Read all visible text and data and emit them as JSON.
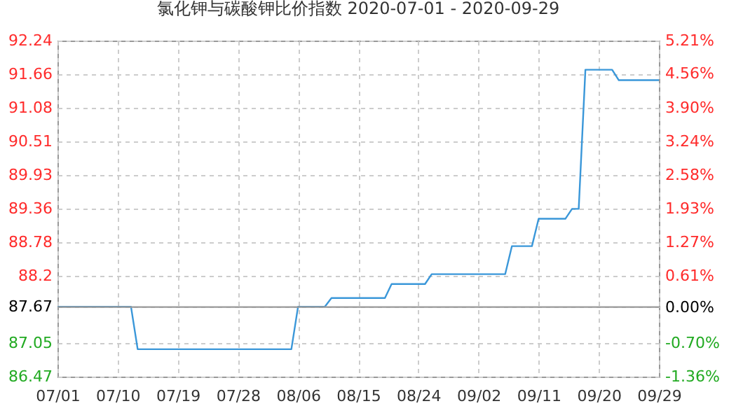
{
  "chart_data": {
    "type": "line",
    "title": "氯化钾与碳酸钾比价指数 2020-07-01 - 2020-09-29",
    "x": [
      "2020-07-01",
      "2020-07-12",
      "2020-07-13",
      "2020-08-05",
      "2020-08-06",
      "2020-08-10",
      "2020-08-11",
      "2020-08-19",
      "2020-08-20",
      "2020-08-25",
      "2020-08-26",
      "2020-09-06",
      "2020-09-07",
      "2020-09-10",
      "2020-09-11",
      "2020-09-15",
      "2020-09-16",
      "2020-09-17",
      "2020-09-18",
      "2020-09-22",
      "2020-09-23",
      "2020-09-29"
    ],
    "series": [
      {
        "color": "#3a97d9",
        "values": [
          87.67,
          87.67,
          86.94,
          86.94,
          87.67,
          87.67,
          87.82,
          87.82,
          88.06,
          88.06,
          88.23,
          88.23,
          88.71,
          88.71,
          89.18,
          89.18,
          89.35,
          89.35,
          91.74,
          91.74,
          91.56,
          91.56
        ]
      }
    ],
    "xlim": [
      "2020-07-01",
      "2020-09-29"
    ],
    "xticks": [
      {
        "value": "2020-07-01",
        "label": "07/01"
      },
      {
        "value": "2020-07-10",
        "label": "07/10"
      },
      {
        "value": "2020-07-19",
        "label": "07/19"
      },
      {
        "value": "2020-07-28",
        "label": "07/28"
      },
      {
        "value": "2020-08-06",
        "label": "08/06"
      },
      {
        "value": "2020-08-15",
        "label": "08/15"
      },
      {
        "value": "2020-08-24",
        "label": "08/24"
      },
      {
        "value": "2020-09-02",
        "label": "09/02"
      },
      {
        "value": "2020-09-11",
        "label": "09/11"
      },
      {
        "value": "2020-09-20",
        "label": "09/20"
      },
      {
        "value": "2020-09-29",
        "label": "09/29"
      }
    ],
    "ylim": [
      86.47,
      92.24
    ],
    "yticks": [
      86.47,
      87.05,
      87.67,
      88.2,
      88.78,
      89.36,
      89.93,
      90.51,
      91.08,
      91.66,
      92.24
    ],
    "y2lim": [
      -1.36,
      5.21
    ],
    "y2ticks": [
      {
        "value": -1.36,
        "label": "-1.36%"
      },
      {
        "value": -0.7,
        "label": "-0.70%"
      },
      {
        "value": 0,
        "label": "0.00%"
      },
      {
        "value": 0.61,
        "label": "0.61%"
      },
      {
        "value": 1.27,
        "label": "1.27%"
      },
      {
        "value": 1.93,
        "label": "1.93%"
      },
      {
        "value": 2.58,
        "label": "2.58%"
      },
      {
        "value": 3.24,
        "label": "3.24%"
      },
      {
        "value": 3.9,
        "label": "3.90%"
      },
      {
        "value": 4.56,
        "label": "4.56%"
      },
      {
        "value": 5.21,
        "label": "5.21%"
      }
    ],
    "ref_lines": [
      {
        "axis": "y2",
        "value": 0,
        "color": "#999999"
      }
    ],
    "grid": true,
    "marker": "none",
    "line_style": "solid"
  }
}
